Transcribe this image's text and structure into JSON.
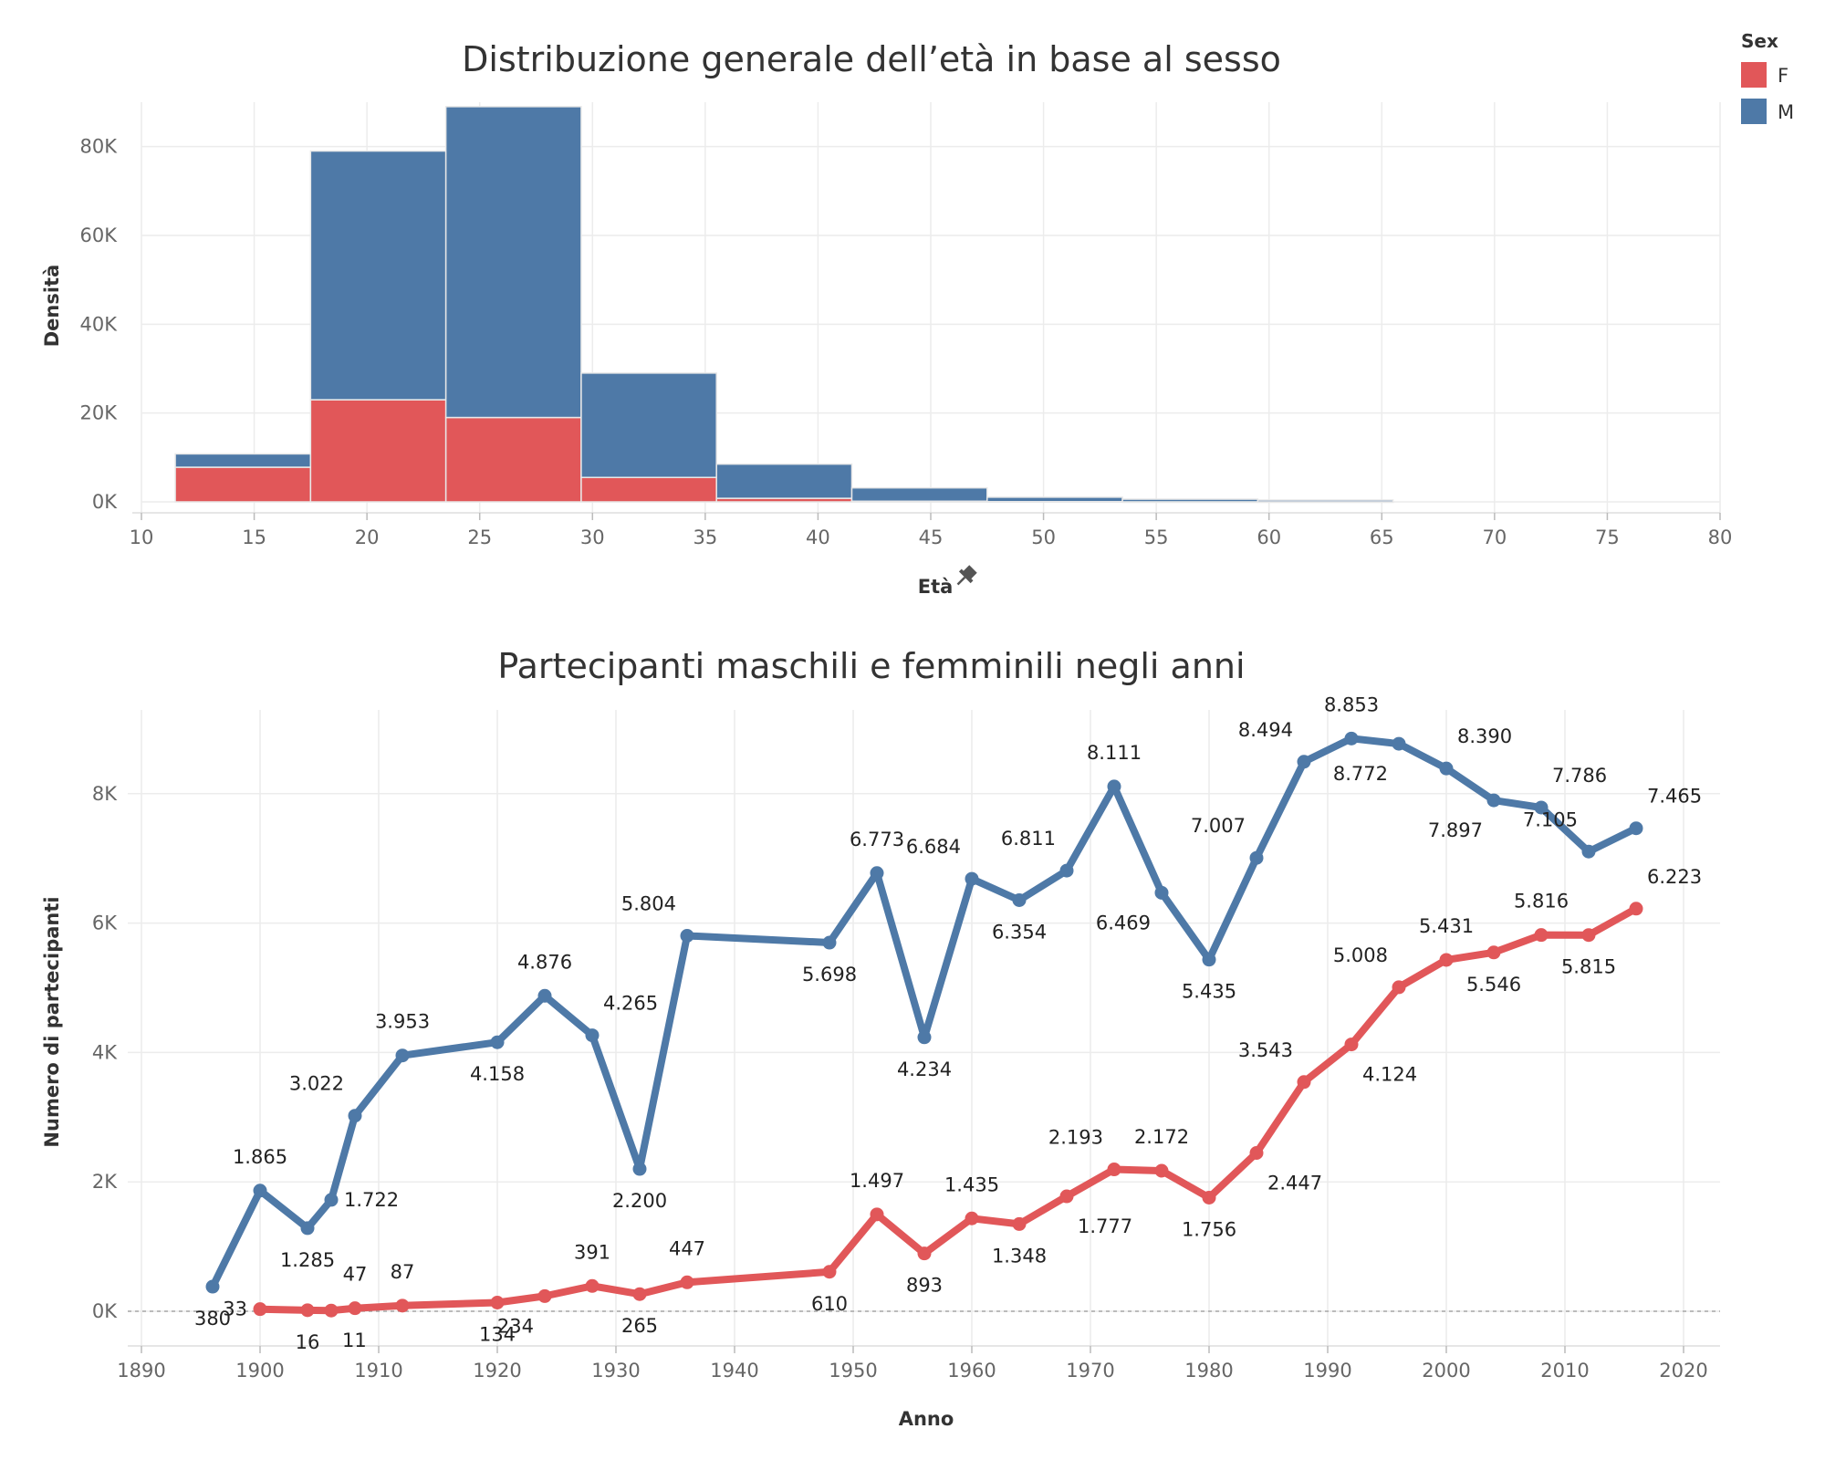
{
  "legend": {
    "title": "Sex",
    "items": [
      {
        "label": "F",
        "color": "#E15759"
      },
      {
        "label": "M",
        "color": "#4E79A7"
      }
    ]
  },
  "chart_data": [
    {
      "type": "bar",
      "title": "Distribuzione generale dell’età in base al sesso",
      "xlabel": "Età",
      "ylabel": "Densità",
      "stacked": true,
      "bins": [
        {
          "from": 11.5,
          "to": 17.5
        },
        {
          "from": 17.5,
          "to": 23.5
        },
        {
          "from": 23.5,
          "to": 29.5
        },
        {
          "from": 29.5,
          "to": 35.5
        },
        {
          "from": 35.5,
          "to": 41.5
        },
        {
          "from": 41.5,
          "to": 47.5
        },
        {
          "from": 47.5,
          "to": 53.5
        },
        {
          "from": 53.5,
          "to": 59.5
        },
        {
          "from": 59.5,
          "to": 65.5
        }
      ],
      "series": [
        {
          "name": "F",
          "color": "#E15759",
          "values": [
            7800,
            23000,
            19000,
            5500,
            800,
            150,
            50,
            10,
            5
          ]
        },
        {
          "name": "M",
          "color": "#4E79A7",
          "values": [
            3000,
            56000,
            70000,
            23500,
            7700,
            3000,
            1000,
            600,
            400
          ]
        }
      ],
      "xlim": [
        10,
        80
      ],
      "ylim": [
        0,
        90000
      ],
      "xticks": [
        10,
        15,
        20,
        25,
        30,
        35,
        40,
        45,
        50,
        55,
        60,
        65,
        70,
        75,
        80
      ],
      "yticks": [
        0,
        20000,
        40000,
        60000,
        80000
      ],
      "ytick_labels": [
        "0K",
        "20K",
        "40K",
        "60K",
        "80K"
      ],
      "grid": true
    },
    {
      "type": "line",
      "title": "Partecipanti maschili e femminili negli anni",
      "xlabel": "Anno",
      "ylabel": "Numero di partecipanti",
      "xlim": [
        1890,
        2020
      ],
      "ylim": [
        0,
        9000
      ],
      "xticks": [
        1890,
        1900,
        1910,
        1920,
        1930,
        1940,
        1950,
        1960,
        1970,
        1980,
        1990,
        2000,
        2010,
        2020
      ],
      "yticks": [
        0,
        2000,
        4000,
        6000,
        8000
      ],
      "ytick_labels": [
        "0K",
        "2K",
        "4K",
        "6K",
        "8K"
      ],
      "grid": true,
      "series": [
        {
          "name": "M",
          "color": "#4E79A7",
          "points": [
            {
              "x": 1896,
              "y": 380,
              "label": "380",
              "pos": "below"
            },
            {
              "x": 1900,
              "y": 1865,
              "label": "1.865",
              "pos": "above"
            },
            {
              "x": 1904,
              "y": 1285,
              "label": "1.285",
              "pos": "below"
            },
            {
              "x": 1906,
              "y": 1722,
              "label": "1.722",
              "pos": "right"
            },
            {
              "x": 1908,
              "y": 3022,
              "label": "3.022",
              "pos": "above-left"
            },
            {
              "x": 1912,
              "y": 3953,
              "label": "3.953",
              "pos": "above"
            },
            {
              "x": 1920,
              "y": 4158,
              "label": "4.158",
              "pos": "below"
            },
            {
              "x": 1924,
              "y": 4876,
              "label": "4.876",
              "pos": "above"
            },
            {
              "x": 1928,
              "y": 4265,
              "label": "4.265",
              "pos": "above-right"
            },
            {
              "x": 1932,
              "y": 2200,
              "label": "2.200",
              "pos": "below"
            },
            {
              "x": 1936,
              "y": 5804,
              "label": "5.804",
              "pos": "above-left"
            },
            {
              "x": 1948,
              "y": 5698,
              "label": "5.698",
              "pos": "below"
            },
            {
              "x": 1952,
              "y": 6773,
              "label": "6.773",
              "pos": "above"
            },
            {
              "x": 1956,
              "y": 4234,
              "label": "4.234",
              "pos": "below"
            },
            {
              "x": 1960,
              "y": 6684,
              "label": "6.684",
              "pos": "above-left"
            },
            {
              "x": 1964,
              "y": 6354,
              "label": "6.354",
              "pos": "below"
            },
            {
              "x": 1968,
              "y": 6811,
              "label": "6.811",
              "pos": "above-left"
            },
            {
              "x": 1972,
              "y": 8111,
              "label": "8.111",
              "pos": "above"
            },
            {
              "x": 1976,
              "y": 6469,
              "label": "6.469",
              "pos": "below-left"
            },
            {
              "x": 1980,
              "y": 5435,
              "label": "5.435",
              "pos": "below"
            },
            {
              "x": 1984,
              "y": 7007,
              "label": "7.007",
              "pos": "above-left"
            },
            {
              "x": 1988,
              "y": 8494,
              "label": "8.494",
              "pos": "above-left"
            },
            {
              "x": 1992,
              "y": 8853,
              "label": "8.853",
              "pos": "above"
            },
            {
              "x": 1996,
              "y": 8772,
              "label": "8.772",
              "pos": "below-left"
            },
            {
              "x": 2000,
              "y": 8390,
              "label": "8.390",
              "pos": "above-right"
            },
            {
              "x": 2004,
              "y": 7897,
              "label": "7.897",
              "pos": "below-left"
            },
            {
              "x": 2008,
              "y": 7786,
              "label": "7.786",
              "pos": "above-right"
            },
            {
              "x": 2012,
              "y": 7105,
              "label": "7.105",
              "pos": "above-left"
            },
            {
              "x": 2016,
              "y": 7465,
              "label": "7.465",
              "pos": "above-right"
            }
          ]
        },
        {
          "name": "F",
          "color": "#E15759",
          "points": [
            {
              "x": 1900,
              "y": 33,
              "label": "33",
              "pos": "left"
            },
            {
              "x": 1904,
              "y": 16,
              "label": "16",
              "pos": "below"
            },
            {
              "x": 1906,
              "y": 11,
              "label": "11",
              "pos": "below-right"
            },
            {
              "x": 1908,
              "y": 47,
              "label": "47",
              "pos": "above"
            },
            {
              "x": 1912,
              "y": 87,
              "label": "87",
              "pos": "above"
            },
            {
              "x": 1920,
              "y": 134,
              "label": "134",
              "pos": "below"
            },
            {
              "x": 1924,
              "y": 234,
              "label": "234",
              "pos": "below-left"
            },
            {
              "x": 1928,
              "y": 391,
              "label": "391",
              "pos": "above"
            },
            {
              "x": 1932,
              "y": 265,
              "label": "265",
              "pos": "below"
            },
            {
              "x": 1936,
              "y": 447,
              "label": "447",
              "pos": "above"
            },
            {
              "x": 1948,
              "y": 610,
              "label": "610",
              "pos": "below"
            },
            {
              "x": 1952,
              "y": 1497,
              "label": "1.497",
              "pos": "above"
            },
            {
              "x": 1956,
              "y": 893,
              "label": "893",
              "pos": "below"
            },
            {
              "x": 1960,
              "y": 1435,
              "label": "1.435",
              "pos": "above"
            },
            {
              "x": 1964,
              "y": 1348,
              "label": "1.348",
              "pos": "below"
            },
            {
              "x": 1968,
              "y": 1777,
              "label": "1.777",
              "pos": "below-right"
            },
            {
              "x": 1972,
              "y": 2193,
              "label": "2.193",
              "pos": "above-left"
            },
            {
              "x": 1976,
              "y": 2172,
              "label": "2.172",
              "pos": "above"
            },
            {
              "x": 1980,
              "y": 1756,
              "label": "1.756",
              "pos": "below"
            },
            {
              "x": 1984,
              "y": 2447,
              "label": "2.447",
              "pos": "below-right"
            },
            {
              "x": 1988,
              "y": 3543,
              "label": "3.543",
              "pos": "above-left"
            },
            {
              "x": 1992,
              "y": 4124,
              "label": "4.124",
              "pos": "below-right"
            },
            {
              "x": 1996,
              "y": 5008,
              "label": "5.008",
              "pos": "above-left"
            },
            {
              "x": 2000,
              "y": 5431,
              "label": "5.431",
              "pos": "above"
            },
            {
              "x": 2004,
              "y": 5546,
              "label": "5.546",
              "pos": "below"
            },
            {
              "x": 2008,
              "y": 5816,
              "label": "5.816",
              "pos": "above"
            },
            {
              "x": 2012,
              "y": 5815,
              "label": "5.815",
              "pos": "below"
            },
            {
              "x": 2016,
              "y": 6223,
              "label": "6.223",
              "pos": "above-right"
            }
          ]
        }
      ]
    }
  ]
}
